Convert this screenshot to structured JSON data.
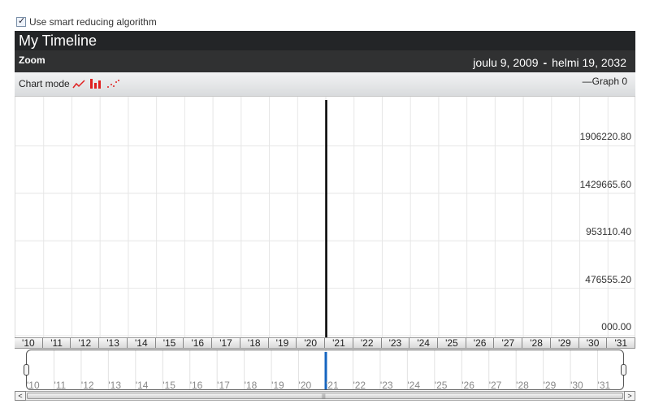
{
  "options": {
    "smart_reducing_label": "Use smart reducing algorithm",
    "smart_reducing_checked": true
  },
  "header": {
    "title": "My Timeline"
  },
  "zoom": {
    "label": "Zoom",
    "start_date": "joulu 9, 2009",
    "separator": "-",
    "end_date": "helmi 19, 2032"
  },
  "chart_mode": {
    "label": "Chart mode",
    "icons": [
      "line-mode-icon",
      "bar-mode-icon",
      "scatter-mode-icon"
    ]
  },
  "legend": {
    "entry": "—Graph 0"
  },
  "colors": {
    "title_bg": "#232527",
    "zoom_bg": "#303132",
    "accent": "#e02020",
    "marker": "#000000",
    "nav_marker": "#1565c0"
  },
  "chart_data": {
    "type": "line",
    "series": [
      {
        "name": "Graph 0",
        "x": [
          "'21"
        ],
        "y": [
          2382776
        ]
      }
    ],
    "y_ticks": [
      "000.00",
      "476555.20",
      "953110.40",
      "1429665.60",
      "1906220.80"
    ],
    "x_ticks": [
      "'10",
      "'11",
      "'12",
      "'13",
      "'14",
      "'15",
      "'16",
      "'17",
      "'18",
      "'19",
      "'20",
      "'21",
      "'22",
      "'23",
      "'24",
      "'25",
      "'26",
      "'27",
      "'28",
      "'29",
      "'30",
      "'31"
    ],
    "grid": true
  },
  "navigator": {
    "labels": [
      "'10",
      "'11",
      "'12",
      "'13",
      "'14",
      "'15",
      "'16",
      "'17",
      "'18",
      "'19",
      "'20",
      "'21",
      "'22",
      "'23",
      "'24",
      "'25",
      "'26",
      "'27",
      "'28",
      "'29",
      "'30",
      "'31"
    ]
  },
  "scrollbar": {
    "left_arrow": "<",
    "right_arrow": ">",
    "grip": "|||"
  }
}
